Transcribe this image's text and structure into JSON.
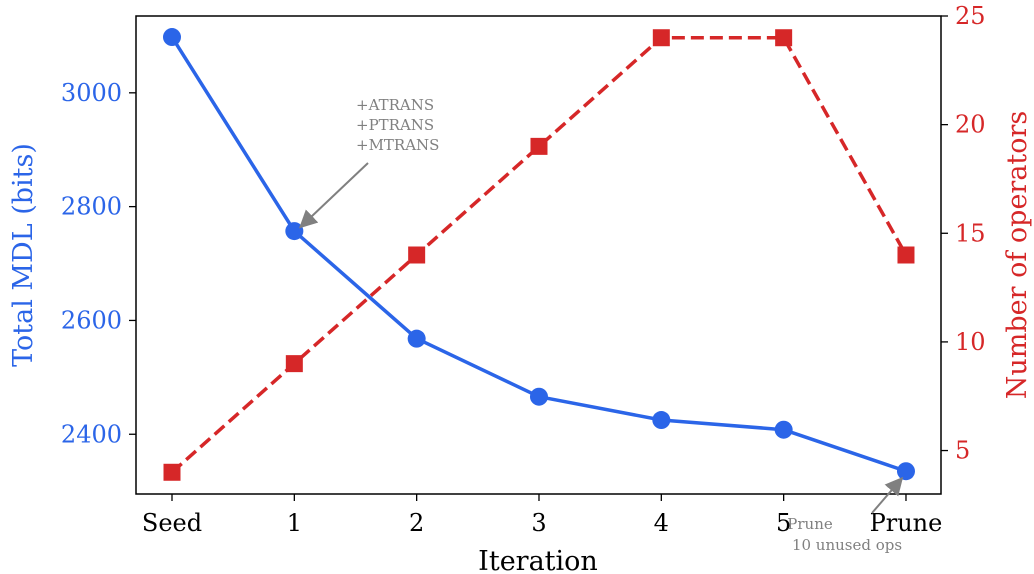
{
  "chart_data": {
    "type": "line",
    "xlabel": "Iteration",
    "categories": [
      "Seed",
      "1",
      "2",
      "3",
      "4",
      "5",
      "Prune"
    ],
    "y_left": {
      "label": "Total MDL (bits)",
      "ylim": [
        2295,
        3135
      ],
      "ticks": [
        2400,
        2600,
        2800,
        3000
      ],
      "color": "#2b65e8"
    },
    "y_right": {
      "label": "Number of operators",
      "ylim": [
        3,
        25
      ],
      "ticks": [
        5,
        10,
        15,
        20,
        25
      ],
      "color": "#d62728"
    },
    "series": [
      {
        "axis": "left",
        "style": "solid",
        "marker": "circle",
        "color": "#2b65e8",
        "values": [
          3098,
          2757,
          2568,
          2466,
          2425,
          2408,
          2335
        ]
      },
      {
        "axis": "right",
        "style": "dashed",
        "marker": "square",
        "color": "#d62728",
        "values": [
          4,
          9,
          14,
          19,
          24,
          24,
          14
        ]
      }
    ],
    "annotations": [
      {
        "lines": [
          "+ATRANS",
          "+PTRANS",
          "+MTRANS"
        ],
        "target_category": "1",
        "target_series": 0
      },
      {
        "lines": [
          "Prune",
          "10 unused ops"
        ],
        "target_category": "Prune",
        "target_series": 0
      }
    ],
    "grid": false,
    "legend": "none"
  }
}
